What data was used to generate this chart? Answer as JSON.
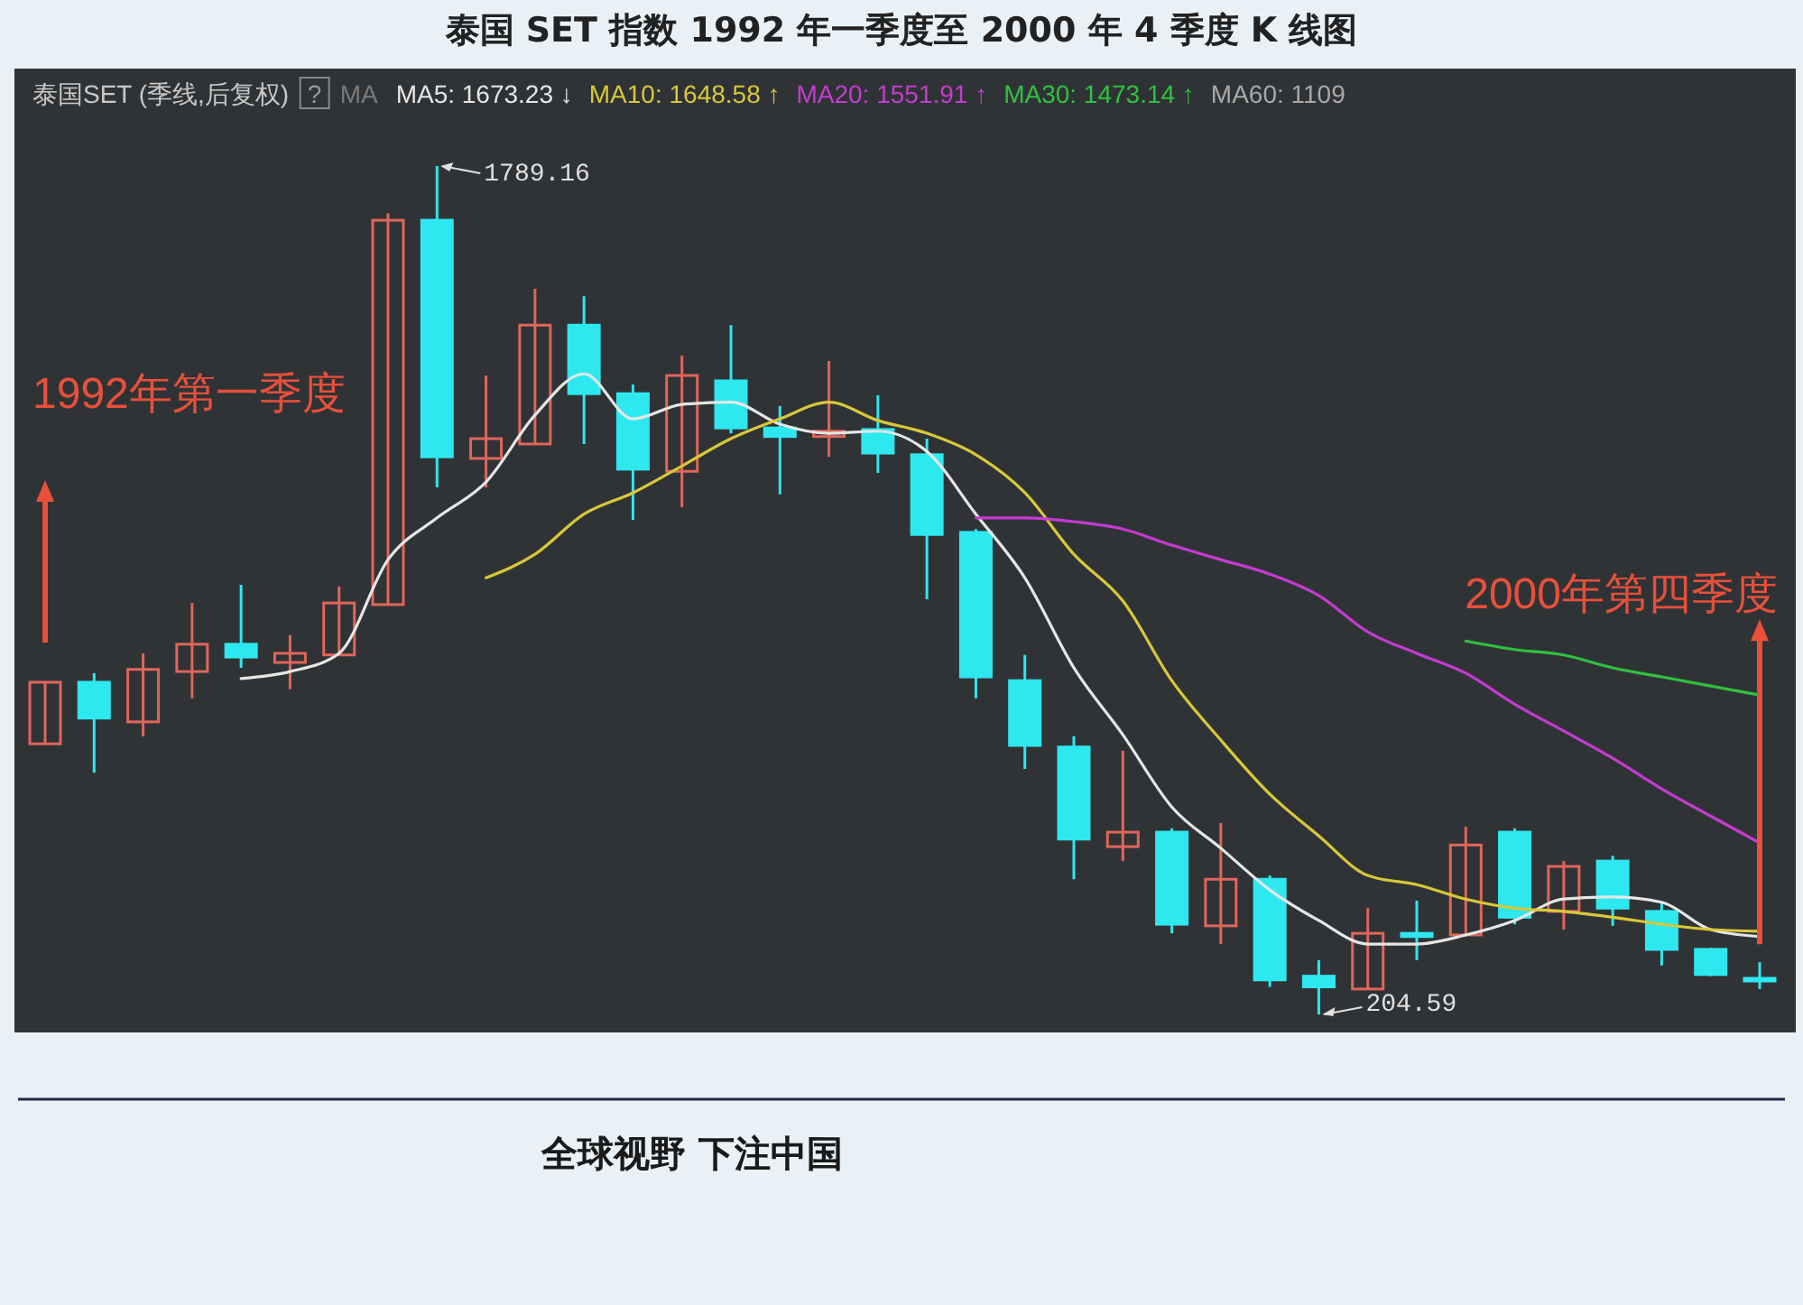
{
  "chart_data": {
    "type": "candlestick",
    "title": "泰国 SET 指数 1992 年一季度至 2000 年 4 季度 K 线图",
    "subtitle": "泰国SET (季线,后复权)",
    "categories": [
      null,
      null,
      null,
      null,
      null,
      null,
      null,
      null,
      null,
      null,
      null,
      null,
      null,
      null,
      null,
      null,
      null,
      null,
      null,
      null,
      null,
      null,
      null,
      null,
      null,
      null,
      null,
      null,
      null,
      null,
      null,
      null,
      null,
      null,
      null,
      null
    ],
    "ohlc": [
      [
        710,
        825,
        710,
        825
      ],
      [
        825,
        842,
        656,
        758
      ],
      [
        751,
        879,
        724,
        849
      ],
      [
        845,
        973,
        795,
        896
      ],
      [
        896,
        1007,
        852,
        872
      ],
      [
        862,
        913,
        812,
        879
      ],
      [
        876,
        1004,
        876,
        973
      ],
      [
        970,
        1701,
        970,
        1688
      ],
      [
        1688,
        1789.16,
        1189,
        1246
      ],
      [
        1243,
        1398,
        1189,
        1280
      ],
      [
        1270,
        1560,
        1270,
        1492
      ],
      [
        1492,
        1546,
        1270,
        1364
      ],
      [
        1364,
        1381,
        1128,
        1223
      ],
      [
        1219,
        1435,
        1152,
        1398
      ],
      [
        1388,
        1492,
        1290,
        1300
      ],
      [
        1300,
        1341,
        1176,
        1284
      ],
      [
        1284,
        1425,
        1246,
        1294
      ],
      [
        1297,
        1361,
        1216,
        1253
      ],
      [
        1250,
        1280,
        980,
        1101
      ],
      [
        1105,
        1111,
        795,
        835
      ],
      [
        828,
        876,
        663,
        707
      ],
      [
        704,
        724,
        457,
        532
      ],
      [
        518,
        697,
        491,
        545
      ],
      [
        545,
        552,
        356,
        373
      ],
      [
        370,
        562,
        336,
        457
      ],
      [
        457,
        464,
        256,
        269
      ],
      [
        276,
        306,
        204.59,
        256
      ],
      [
        252,
        403,
        252,
        356
      ],
      [
        356,
        417,
        306,
        350
      ],
      [
        353,
        555,
        353,
        521
      ],
      [
        545,
        552,
        373,
        386
      ],
      [
        397,
        491,
        363,
        481
      ],
      [
        491,
        501,
        370,
        403
      ],
      [
        397,
        414,
        296,
        326
      ],
      [
        326,
        329,
        276,
        279
      ],
      [
        272,
        302,
        252,
        270
      ]
    ],
    "colors": [
      "#e0665a",
      "#2ee8f0",
      "#e0665a",
      "#e0665a",
      "#2ee8f0",
      "#e0665a",
      "#e0665a",
      "#e0665a",
      "#2ee8f0",
      "#e0665a",
      "#e0665a",
      "#2ee8f0",
      "#2ee8f0",
      "#e0665a",
      "#2ee8f0",
      "#2ee8f0",
      "#e0665a",
      "#2ee8f0",
      "#2ee8f0",
      "#2ee8f0",
      "#2ee8f0",
      "#2ee8f0",
      "#e0665a",
      "#2ee8f0",
      "#e0665a",
      "#2ee8f0",
      "#2ee8f0",
      "#e0665a",
      "#2ee8f0",
      "#e0665a",
      "#2ee8f0",
      "#e0665a",
      "#2ee8f0",
      "#2ee8f0",
      "#2ee8f0",
      "#2ee8f0"
    ],
    "series": [
      {
        "type": "line",
        "name": "MA5: 1673.23 ↓",
        "color": "#e6e6e6",
        "values": [
          null,
          null,
          null,
          null,
          832,
          845,
          879,
          1054,
          1132,
          1199,
          1324,
          1401,
          1317,
          1344,
          1348,
          1307,
          1290,
          1294,
          1256,
          1139,
          1020,
          852,
          727,
          592,
          515,
          437,
          380,
          336,
          336,
          353,
          380,
          420,
          424,
          414,
          363,
          350
        ]
      },
      {
        "type": "line",
        "name": "MA10: 1648.58 ↑",
        "color": "#d8c838",
        "values": [
          null,
          null,
          null,
          null,
          null,
          null,
          null,
          null,
          null,
          1020,
          1064,
          1139,
          1179,
          1229,
          1280,
          1317,
          1348,
          1314,
          1290,
          1250,
          1179,
          1064,
          977,
          828,
          717,
          616,
          538,
          464,
          447,
          420,
          403,
          397,
          386,
          373,
          363,
          360
        ]
      },
      {
        "type": "line",
        "name": "MA20: 1551.91 ↑",
        "color": "#c43cd0",
        "values": [
          null,
          null,
          null,
          null,
          null,
          null,
          null,
          null,
          null,
          null,
          null,
          null,
          null,
          null,
          null,
          null,
          null,
          null,
          null,
          1132,
          1132,
          1125,
          1111,
          1081,
          1054,
          1027,
          987,
          919,
          879,
          842,
          784,
          734,
          683,
          626,
          575,
          525
        ]
      },
      {
        "type": "line",
        "name": "MA30: 1473.14 ↑",
        "color": "#30c040",
        "values": [
          null,
          null,
          null,
          null,
          null,
          null,
          null,
          null,
          null,
          null,
          null,
          null,
          null,
          null,
          null,
          null,
          null,
          null,
          null,
          null,
          null,
          null,
          null,
          null,
          null,
          null,
          null,
          null,
          null,
          902,
          886,
          876,
          852,
          835,
          818,
          801
        ]
      }
    ],
    "legend": "top",
    "annotations": [
      "1992年第一季度",
      "2000年第四季度",
      "1789.16",
      "204.59",
      "MA",
      "MA60: 1109",
      "全球视野 下注中国",
      "?"
    ]
  }
}
